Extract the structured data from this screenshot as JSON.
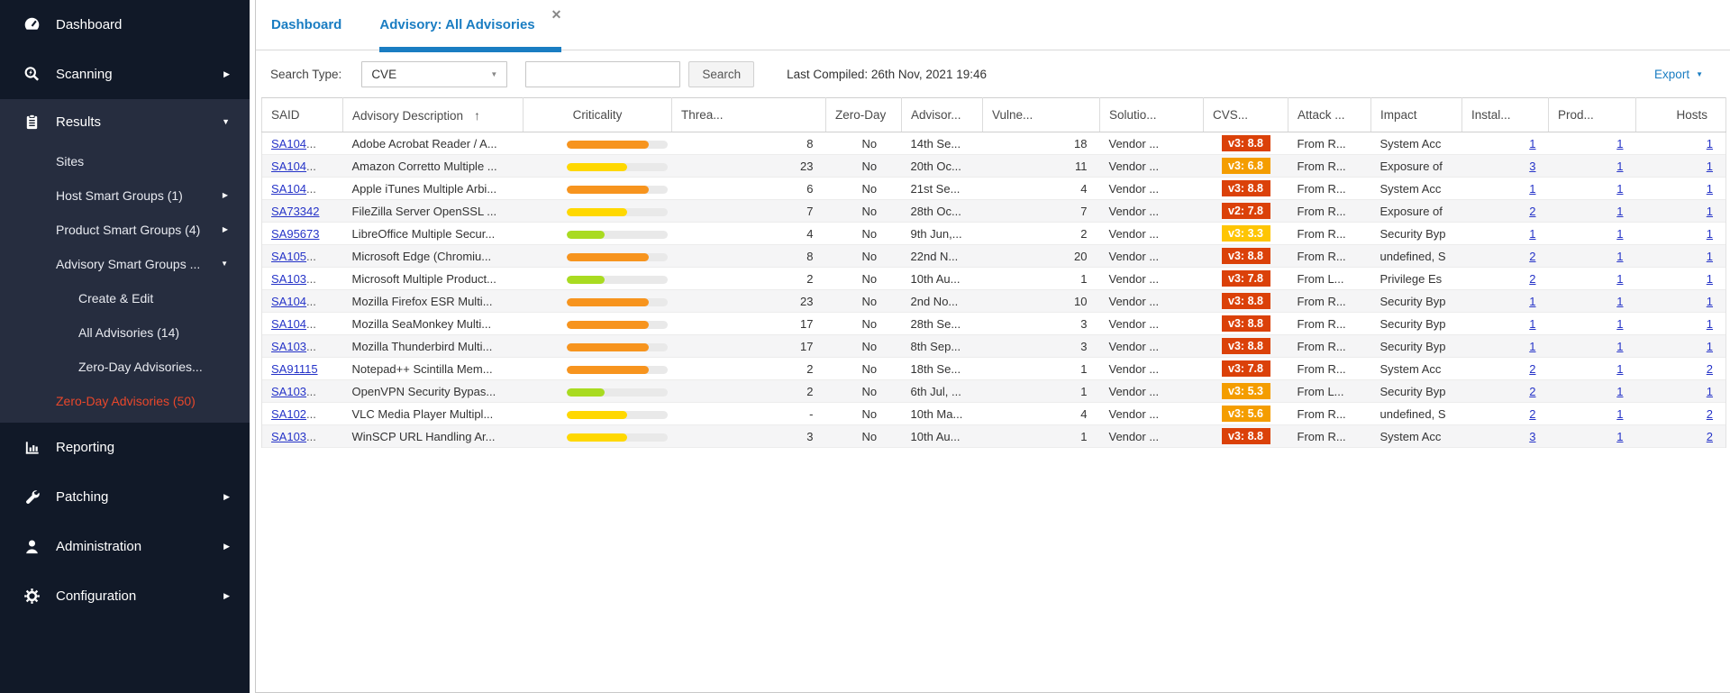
{
  "colors": {
    "accent_blue": "#1A7DC2",
    "link_blue": "#2533C8",
    "selected_red": "#E8472B",
    "sidebar_bg": "#111928",
    "sidebar_section_bg": "#262D3F",
    "crit_orange": "#F7941E",
    "crit_yellow": "#FFD800",
    "crit_green": "#A9DB21",
    "cvss_red": "#DB4109",
    "cvss_orange": "#F49D00",
    "cvss_gold": "#FEC503"
  },
  "sidebar": {
    "items": [
      {
        "label": "Dashboard",
        "icon": "dashboard",
        "level": 0
      },
      {
        "label": "Scanning",
        "icon": "scanning",
        "level": 0,
        "arrow": "right"
      },
      {
        "label": "Results",
        "icon": "results",
        "level": 0,
        "arrow": "down",
        "section": true
      },
      {
        "label": "Sites",
        "level": 1,
        "section": true
      },
      {
        "label": "Host Smart Groups (1)",
        "level": 1,
        "arrow": "right",
        "section": true
      },
      {
        "label": "Product Smart Groups (4)",
        "level": 1,
        "arrow": "right",
        "section": true
      },
      {
        "label": "Advisory Smart Groups ...",
        "level": 1,
        "arrow": "down",
        "section": true
      },
      {
        "label": "Create & Edit",
        "level": 2,
        "section": true
      },
      {
        "label": "All Advisories (14)",
        "level": 2,
        "section": true
      },
      {
        "label": "Zero-Day Advisories...",
        "level": 2,
        "section": true
      },
      {
        "label": "Zero-Day Advisories (50)",
        "level": 1,
        "section": true,
        "selected": true
      },
      {
        "label": "Reporting",
        "icon": "reporting",
        "level": 0
      },
      {
        "label": "Patching",
        "icon": "patching",
        "level": 0,
        "arrow": "right"
      },
      {
        "label": "Administration",
        "icon": "administration",
        "level": 0,
        "arrow": "right"
      },
      {
        "label": "Configuration",
        "icon": "configuration",
        "level": 0,
        "arrow": "right"
      }
    ]
  },
  "tabs": [
    {
      "label": "Dashboard",
      "active": false
    },
    {
      "label": "Advisory: All Advisories",
      "active": true,
      "close_glyph": "✕"
    }
  ],
  "toolbar": {
    "search_type_label": "Search Type:",
    "search_type_value": "CVE",
    "search_placeholder": "",
    "search_button_label": "Search",
    "last_compiled": "Last Compiled: 26th Nov, 2021 19:46",
    "export_label": "Export"
  },
  "table": {
    "columns": [
      {
        "label": "SAID"
      },
      {
        "label": "Advisory Description",
        "sort": "asc"
      },
      {
        "label": "Criticality",
        "align": "center"
      },
      {
        "label": "Threa..."
      },
      {
        "label": "Zero-Day"
      },
      {
        "label": "Advisor..."
      },
      {
        "label": "Vulne..."
      },
      {
        "label": "Solutio..."
      },
      {
        "label": "CVS..."
      },
      {
        "label": "Attack ..."
      },
      {
        "label": "Impact"
      },
      {
        "label": "Instal..."
      },
      {
        "label": "Prod..."
      },
      {
        "label": "Hosts",
        "align": "right"
      }
    ],
    "rows": [
      {
        "said": "SA104",
        "said_truncated": true,
        "description": "Adobe Acrobat Reader / A...",
        "criticality": {
          "color": "#F7941E",
          "percent": 82
        },
        "threat_score": "8",
        "zero_day": "No",
        "advisory_published": "14th Se...",
        "vulnerabilities": "18",
        "solution_status": "Vendor ...",
        "cvss": {
          "label": "v3: 8.8",
          "color": "#DB4109"
        },
        "attack_vector": "From R...",
        "impact": "System Acc",
        "installations": "1",
        "products": "1",
        "hosts": "1"
      },
      {
        "said": "SA104",
        "said_truncated": true,
        "description": "Amazon Corretto Multiple ...",
        "criticality": {
          "color": "#FFD800",
          "percent": 60
        },
        "threat_score": "23",
        "zero_day": "No",
        "advisory_published": "20th Oc...",
        "vulnerabilities": "11",
        "solution_status": "Vendor ...",
        "cvss": {
          "label": "v3: 6.8",
          "color": "#F49D00"
        },
        "attack_vector": "From R...",
        "impact": "Exposure of",
        "installations": "3",
        "products": "1",
        "hosts": "1"
      },
      {
        "said": "SA104",
        "said_truncated": true,
        "description": "Apple iTunes Multiple Arbi...",
        "criticality": {
          "color": "#F7941E",
          "percent": 82
        },
        "threat_score": "6",
        "zero_day": "No",
        "advisory_published": "21st Se...",
        "vulnerabilities": "4",
        "solution_status": "Vendor ...",
        "cvss": {
          "label": "v3: 8.8",
          "color": "#DB4109"
        },
        "attack_vector": "From R...",
        "impact": "System Acc",
        "installations": "1",
        "products": "1",
        "hosts": "1"
      },
      {
        "said": "SA73342",
        "said_truncated": false,
        "description": "FileZilla Server OpenSSL ...",
        "criticality": {
          "color": "#FFD800",
          "percent": 60
        },
        "threat_score": "7",
        "zero_day": "No",
        "advisory_published": "28th Oc...",
        "vulnerabilities": "7",
        "solution_status": "Vendor ...",
        "cvss": {
          "label": "v2: 7.8",
          "color": "#DB4109"
        },
        "attack_vector": "From R...",
        "impact": "Exposure of",
        "installations": "2",
        "products": "1",
        "hosts": "1"
      },
      {
        "said": "SA95673",
        "said_truncated": false,
        "description": "LibreOffice Multiple Secur...",
        "criticality": {
          "color": "#A9DB21",
          "percent": 38
        },
        "threat_score": "4",
        "zero_day": "No",
        "advisory_published": "9th Jun,...",
        "vulnerabilities": "2",
        "solution_status": "Vendor ...",
        "cvss": {
          "label": "v3: 3.3",
          "color": "#FEC503"
        },
        "attack_vector": "From R...",
        "impact": "Security Byp",
        "installations": "1",
        "products": "1",
        "hosts": "1"
      },
      {
        "said": "SA105",
        "said_truncated": true,
        "description": "Microsoft Edge (Chromiu...",
        "criticality": {
          "color": "#F7941E",
          "percent": 82
        },
        "threat_score": "8",
        "zero_day": "No",
        "advisory_published": "22nd N...",
        "vulnerabilities": "20",
        "solution_status": "Vendor ...",
        "cvss": {
          "label": "v3: 8.8",
          "color": "#DB4109"
        },
        "attack_vector": "From R...",
        "impact": "undefined, S",
        "installations": "2",
        "products": "1",
        "hosts": "1"
      },
      {
        "said": "SA103",
        "said_truncated": true,
        "description": "Microsoft Multiple Product...",
        "criticality": {
          "color": "#A9DB21",
          "percent": 38
        },
        "threat_score": "2",
        "zero_day": "No",
        "advisory_published": "10th Au...",
        "vulnerabilities": "1",
        "solution_status": "Vendor ...",
        "cvss": {
          "label": "v3: 7.8",
          "color": "#DB4109"
        },
        "attack_vector": "From L...",
        "impact": "Privilege Es",
        "installations": "2",
        "products": "1",
        "hosts": "1"
      },
      {
        "said": "SA104",
        "said_truncated": true,
        "description": "Mozilla Firefox ESR Multi...",
        "criticality": {
          "color": "#F7941E",
          "percent": 82
        },
        "threat_score": "23",
        "zero_day": "No",
        "advisory_published": "2nd No...",
        "vulnerabilities": "10",
        "solution_status": "Vendor ...",
        "cvss": {
          "label": "v3: 8.8",
          "color": "#DB4109"
        },
        "attack_vector": "From R...",
        "impact": "Security Byp",
        "installations": "1",
        "products": "1",
        "hosts": "1"
      },
      {
        "said": "SA104",
        "said_truncated": true,
        "description": "Mozilla SeaMonkey Multi...",
        "criticality": {
          "color": "#F7941E",
          "percent": 82
        },
        "threat_score": "17",
        "zero_day": "No",
        "advisory_published": "28th Se...",
        "vulnerabilities": "3",
        "solution_status": "Vendor ...",
        "cvss": {
          "label": "v3: 8.8",
          "color": "#DB4109"
        },
        "attack_vector": "From R...",
        "impact": "Security Byp",
        "installations": "1",
        "products": "1",
        "hosts": "1"
      },
      {
        "said": "SA103",
        "said_truncated": true,
        "description": "Mozilla Thunderbird Multi...",
        "criticality": {
          "color": "#F7941E",
          "percent": 82
        },
        "threat_score": "17",
        "zero_day": "No",
        "advisory_published": "8th Sep...",
        "vulnerabilities": "3",
        "solution_status": "Vendor ...",
        "cvss": {
          "label": "v3: 8.8",
          "color": "#DB4109"
        },
        "attack_vector": "From R...",
        "impact": "Security Byp",
        "installations": "1",
        "products": "1",
        "hosts": "1"
      },
      {
        "said": "SA91115",
        "said_truncated": false,
        "description": "Notepad++ Scintilla Mem...",
        "criticality": {
          "color": "#F7941E",
          "percent": 82
        },
        "threat_score": "2",
        "zero_day": "No",
        "advisory_published": "18th Se...",
        "vulnerabilities": "1",
        "solution_status": "Vendor ...",
        "cvss": {
          "label": "v3: 7.8",
          "color": "#DB4109"
        },
        "attack_vector": "From R...",
        "impact": "System Acc",
        "installations": "2",
        "products": "1",
        "hosts": "2"
      },
      {
        "said": "SA103",
        "said_truncated": true,
        "description": "OpenVPN Security Bypas...",
        "criticality": {
          "color": "#A9DB21",
          "percent": 38
        },
        "threat_score": "2",
        "zero_day": "No",
        "advisory_published": "6th Jul, ...",
        "vulnerabilities": "1",
        "solution_status": "Vendor ...",
        "cvss": {
          "label": "v3: 5.3",
          "color": "#F49D00"
        },
        "attack_vector": "From L...",
        "impact": "Security Byp",
        "installations": "2",
        "products": "1",
        "hosts": "1"
      },
      {
        "said": "SA102",
        "said_truncated": true,
        "description": "VLC Media Player Multipl...",
        "criticality": {
          "color": "#FFD800",
          "percent": 60
        },
        "threat_score": "-",
        "zero_day": "No",
        "advisory_published": "10th Ma...",
        "vulnerabilities": "4",
        "solution_status": "Vendor ...",
        "cvss": {
          "label": "v3: 5.6",
          "color": "#F49D00"
        },
        "attack_vector": "From R...",
        "impact": "undefined, S",
        "installations": "2",
        "products": "1",
        "hosts": "2"
      },
      {
        "said": "SA103",
        "said_truncated": true,
        "description": "WinSCP URL Handling Ar...",
        "criticality": {
          "color": "#FFD800",
          "percent": 60
        },
        "threat_score": "3",
        "zero_day": "No",
        "advisory_published": "10th Au...",
        "vulnerabilities": "1",
        "solution_status": "Vendor ...",
        "cvss": {
          "label": "v3: 8.8",
          "color": "#DB4109"
        },
        "attack_vector": "From R...",
        "impact": "System Acc",
        "installations": "3",
        "products": "1",
        "hosts": "2"
      }
    ]
  }
}
